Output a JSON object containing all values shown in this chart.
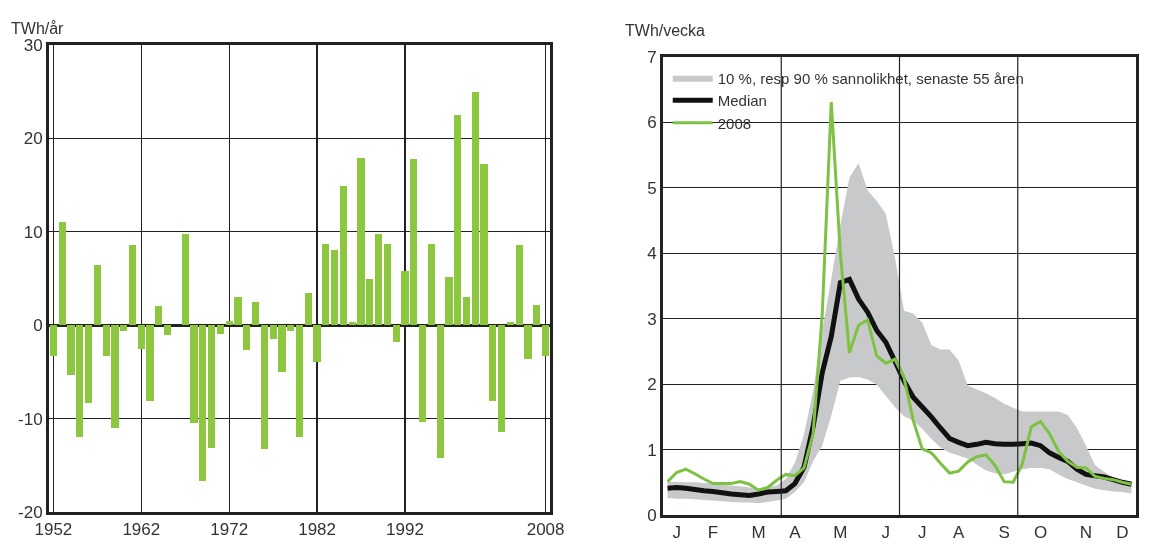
{
  "chart_data": [
    {
      "type": "bar",
      "ylabel": "TWh/år",
      "x": [
        1952,
        1953,
        1954,
        1955,
        1956,
        1957,
        1958,
        1959,
        1960,
        1961,
        1962,
        1963,
        1964,
        1965,
        1966,
        1967,
        1968,
        1969,
        1970,
        1971,
        1972,
        1973,
        1974,
        1975,
        1976,
        1977,
        1978,
        1979,
        1980,
        1981,
        1982,
        1983,
        1984,
        1985,
        1986,
        1987,
        1988,
        1989,
        1990,
        1991,
        1992,
        1993,
        1994,
        1995,
        1996,
        1997,
        1998,
        1999,
        2000,
        2001,
        2002,
        2003,
        2004,
        2005,
        2006,
        2007,
        2008
      ],
      "values": [
        -3.3,
        11.1,
        -5.3,
        -12.0,
        -8.3,
        6.4,
        -3.3,
        -11.0,
        -0.6,
        8.6,
        -2.6,
        -8.1,
        2.1,
        -1.1,
        0,
        9.8,
        -10.5,
        -16.7,
        -13.1,
        -0.9,
        0.4,
        3.0,
        -2.7,
        2.5,
        -13.3,
        -1.5,
        -5.0,
        -0.6,
        -12.0,
        3.5,
        -3.9,
        8.7,
        8.0,
        14.9,
        0.3,
        17.9,
        4.9,
        9.8,
        8.7,
        -1.8,
        5.8,
        17.8,
        -10.4,
        8.7,
        -14.2,
        5.2,
        22.5,
        3.0,
        25.0,
        17.3,
        -8.1,
        -11.4,
        0.3,
        8.6,
        -3.6,
        2.2,
        -3.3
      ],
      "color": "#8dc63f",
      "xlim": [
        1951.5,
        2008.5
      ],
      "xticks": [
        1952,
        1962,
        1972,
        1982,
        1992,
        2008
      ],
      "ylim": [
        -20,
        30
      ],
      "yticks": [
        -20,
        -10,
        0,
        10,
        20,
        30
      ],
      "grid": true
    },
    {
      "type": "line",
      "ylabel": "TWh/vecka",
      "categories": [
        null,
        "J",
        null,
        null,
        null,
        "F",
        null,
        null,
        null,
        null,
        "M",
        null,
        null,
        null,
        "A",
        null,
        null,
        null,
        null,
        "M",
        null,
        null,
        null,
        null,
        "J",
        null,
        null,
        null,
        "J",
        null,
        null,
        null,
        "A",
        null,
        null,
        null,
        null,
        "S",
        null,
        null,
        null,
        "O",
        null,
        null,
        null,
        null,
        "N",
        null,
        null,
        null,
        "D",
        null
      ],
      "ylim": [
        0,
        7
      ],
      "yticks": [
        0,
        1,
        2,
        3,
        4,
        5,
        6,
        7
      ],
      "grid": "y",
      "legend": "top left",
      "series": [
        {
          "name": "10 %, resp 90 % sannolikhet, senaste 55 åren",
          "type": "area",
          "color": "#c8c9cb",
          "values": [
            null,
            null,
            null,
            null,
            null,
            null,
            null,
            null,
            null,
            null,
            null,
            null,
            null,
            null,
            null,
            null,
            null,
            null,
            null,
            null,
            null,
            null,
            null,
            null,
            null,
            null,
            null,
            null,
            null,
            null,
            null,
            null,
            null,
            null,
            null,
            null,
            null,
            null,
            null,
            null,
            null,
            null,
            null,
            null,
            null,
            null,
            null,
            null,
            null,
            null,
            null,
            null
          ],
          "lower": [
            0.26,
            0.25,
            0.25,
            0.24,
            0.23,
            0.22,
            0.21,
            0.2,
            0.19,
            0.19,
            0.18,
            0.2,
            0.22,
            0.25,
            0.35,
            0.5,
            0.82,
            1.06,
            1.52,
            2.05,
            2.1,
            2.11,
            2.07,
            1.99,
            1.82,
            1.65,
            1.51,
            1.44,
            1.32,
            1.16,
            1.03,
            0.95,
            0.91,
            0.86,
            0.77,
            0.68,
            0.64,
            0.62,
            0.66,
            0.7,
            0.72,
            0.72,
            0.7,
            0.62,
            0.55,
            0.5,
            0.45,
            0.4,
            0.38,
            0.36,
            0.35,
            0.33
          ],
          "upper": [
            0.51,
            0.51,
            0.5,
            0.5,
            0.49,
            0.48,
            0.46,
            0.45,
            0.44,
            0.42,
            0.41,
            0.43,
            0.45,
            0.55,
            0.8,
            1.23,
            1.89,
            2.81,
            3.61,
            4.44,
            5.16,
            5.38,
            4.96,
            4.8,
            4.6,
            3.93,
            3.12,
            3.08,
            2.94,
            2.6,
            2.53,
            2.53,
            2.36,
            1.98,
            1.92,
            1.86,
            1.79,
            1.7,
            1.64,
            1.58,
            1.58,
            1.58,
            1.58,
            1.58,
            1.53,
            1.33,
            1.06,
            0.76,
            0.66,
            0.56,
            0.53,
            0.48
          ]
        },
        {
          "name": "Median",
          "type": "line",
          "color": "#111111",
          "values": [
            0.41,
            0.42,
            0.41,
            0.39,
            0.37,
            0.36,
            0.34,
            0.32,
            0.31,
            0.3,
            0.32,
            0.35,
            0.36,
            0.37,
            0.48,
            0.73,
            1.35,
            2.17,
            2.73,
            3.55,
            3.6,
            3.3,
            3.1,
            2.82,
            2.64,
            2.35,
            2.05,
            1.8,
            1.65,
            1.5,
            1.33,
            1.17,
            1.11,
            1.06,
            1.08,
            1.11,
            1.09,
            1.08,
            1.08,
            1.09,
            1.1,
            1.06,
            0.95,
            0.88,
            0.82,
            0.7,
            0.62,
            0.6,
            0.58,
            0.54,
            0.5,
            0.47
          ]
        },
        {
          "name": "2008",
          "type": "line",
          "color": "#7dc242",
          "values": [
            0.51,
            0.65,
            0.7,
            0.63,
            0.55,
            0.48,
            0.48,
            0.48,
            0.51,
            0.47,
            0.38,
            0.42,
            0.53,
            0.62,
            0.6,
            0.72,
            1.24,
            3.05,
            6.31,
            3.99,
            2.48,
            2.9,
            2.98,
            2.43,
            2.32,
            2.38,
            2.1,
            1.45,
            1.01,
            0.95,
            0.79,
            0.64,
            0.67,
            0.81,
            0.89,
            0.92,
            0.76,
            0.51,
            0.5,
            0.78,
            1.35,
            1.43,
            1.24,
            0.97,
            0.82,
            0.73,
            0.72,
            0.59,
            0.56,
            0.54,
            0.5,
            0.47
          ]
        }
      ]
    }
  ]
}
